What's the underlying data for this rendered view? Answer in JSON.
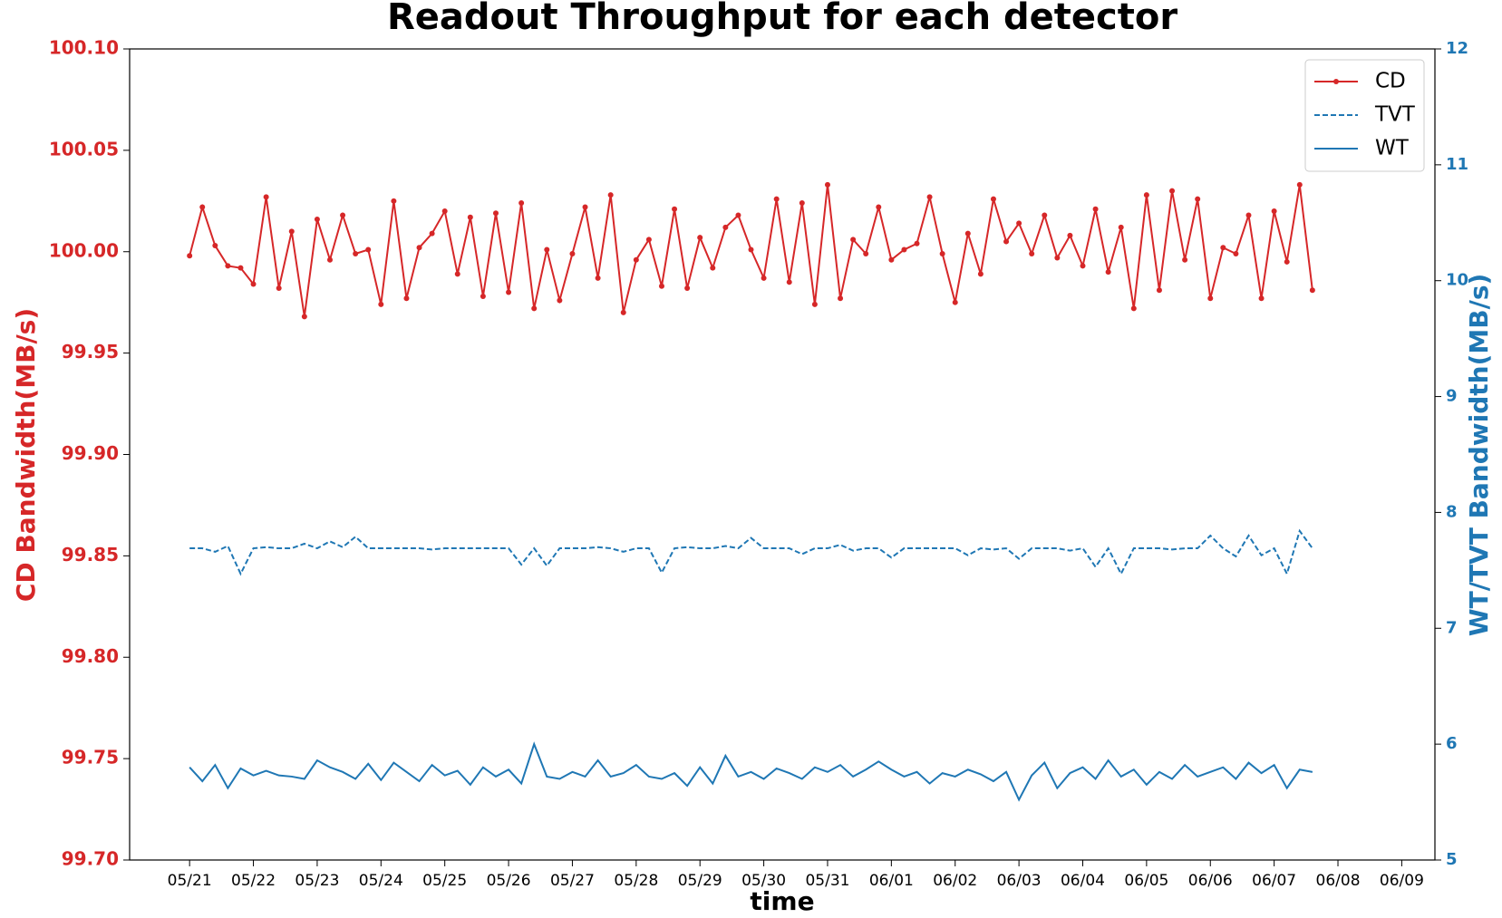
{
  "chart_data": {
    "type": "line",
    "title": "Readout Throughput for each detector",
    "xlabel": "time",
    "ylabel": "CD Bandwidth(MB/s)",
    "y2label": "WT/TVT Bandwidth(MB/s)",
    "ylabel_color": "#d62728",
    "y2label_color": "#1f77b4",
    "legend": "upper right",
    "xlim": [
      -0.94,
      19.52
    ],
    "xticks": [
      {
        "value": 0,
        "label": "05/21"
      },
      {
        "value": 1,
        "label": "05/22"
      },
      {
        "value": 2,
        "label": "05/23"
      },
      {
        "value": 3,
        "label": "05/24"
      },
      {
        "value": 4,
        "label": "05/25"
      },
      {
        "value": 5,
        "label": "05/26"
      },
      {
        "value": 6,
        "label": "05/27"
      },
      {
        "value": 7,
        "label": "05/28"
      },
      {
        "value": 8,
        "label": "05/29"
      },
      {
        "value": 9,
        "label": "05/30"
      },
      {
        "value": 10,
        "label": "05/31"
      },
      {
        "value": 11,
        "label": "06/01"
      },
      {
        "value": 12,
        "label": "06/02"
      },
      {
        "value": 13,
        "label": "06/03"
      },
      {
        "value": 14,
        "label": "06/04"
      },
      {
        "value": 15,
        "label": "06/05"
      },
      {
        "value": 16,
        "label": "06/06"
      },
      {
        "value": 17,
        "label": "06/07"
      },
      {
        "value": 18,
        "label": "06/08"
      },
      {
        "value": 19,
        "label": "06/09"
      }
    ],
    "ylim": [
      99.7,
      100.1
    ],
    "yticks": [
      {
        "value": 99.7,
        "label": "99.70"
      },
      99.75,
      {
        "value": 99.8,
        "label": "99.80"
      },
      99.85,
      {
        "value": 99.9,
        "label": "99.90"
      },
      99.95,
      {
        "value": 100,
        "label": "100.00"
      },
      100.05,
      {
        "value": 100.1,
        "label": "100.10"
      }
    ],
    "y2lim": [
      5,
      12
    ],
    "y2ticks": [
      5,
      6,
      7,
      8,
      9,
      10,
      11,
      12
    ],
    "x": [
      0,
      0.2,
      0.4,
      0.6,
      0.8,
      1,
      1.2,
      1.4,
      1.6,
      1.8,
      2,
      2.2,
      2.4,
      2.6,
      2.8,
      3,
      3.2,
      3.4,
      3.6,
      3.8,
      4,
      4.2,
      4.4,
      4.6,
      4.8,
      5,
      5.2,
      5.4,
      5.6,
      5.8,
      6,
      6.2,
      6.4,
      6.6,
      6.8,
      7,
      7.2,
      7.4,
      7.6,
      7.8,
      8,
      8.2,
      8.4,
      8.6,
      8.8,
      9,
      9.2,
      9.4,
      9.6,
      9.8,
      10,
      10.2,
      10.4,
      10.6,
      10.8,
      11,
      11.2,
      11.4,
      11.6,
      11.8,
      12,
      12.2,
      12.4,
      12.6,
      12.8,
      13,
      13.2,
      13.4,
      13.6,
      13.8,
      14,
      14.2,
      14.4,
      14.6,
      14.8,
      15,
      15.2,
      15.4,
      15.6,
      15.8,
      16,
      16.2,
      16.4,
      16.6,
      16.8,
      17,
      17.2,
      17.4,
      17.6
    ],
    "series": [
      {
        "name": "CD",
        "color": "#d62728",
        "style": "solid",
        "marker": true,
        "values": [
          99.998,
          100.022,
          100.003,
          99.993,
          99.992,
          99.984,
          100.027,
          99.982,
          100.01,
          99.968,
          100.016,
          99.996,
          100.018,
          99.999,
          100.001,
          99.974,
          100.025,
          99.977,
          100.002,
          100.009,
          100.02,
          99.989,
          100.017,
          99.978,
          100.019,
          99.98,
          100.024,
          99.972,
          100.001,
          99.976,
          99.999,
          100.022,
          99.987,
          100.028,
          99.97,
          99.996,
          100.006,
          99.983,
          100.021,
          99.982,
          100.007,
          99.992,
          100.012,
          100.018,
          100.001,
          99.987,
          100.026,
          99.985,
          100.024,
          99.974,
          100.033,
          99.977,
          100.006,
          99.999,
          100.022,
          99.996,
          100.001,
          100.004,
          100.027,
          99.999,
          99.975,
          100.009,
          99.989,
          100.026,
          100.005,
          100.014,
          99.999,
          100.018,
          99.997,
          100.008,
          99.993,
          100.021,
          99.99,
          100.012,
          99.972,
          100.028,
          99.981,
          100.03,
          99.996,
          100.026,
          99.977,
          100.002,
          99.999,
          100.018,
          99.977,
          100.02,
          99.995,
          100.033,
          99.981
        ]
      },
      {
        "name": "TVT",
        "color": "#1f77b4",
        "style": "dashed",
        "marker": false,
        "axis": "y2",
        "values": [
          7.69,
          7.69,
          7.66,
          7.71,
          7.47,
          7.69,
          7.7,
          7.69,
          7.69,
          7.73,
          7.69,
          7.75,
          7.7,
          7.79,
          7.69,
          7.69,
          7.69,
          7.69,
          7.69,
          7.68,
          7.69,
          7.69,
          7.69,
          7.69,
          7.69,
          7.69,
          7.55,
          7.69,
          7.54,
          7.69,
          7.69,
          7.69,
          7.7,
          7.69,
          7.66,
          7.69,
          7.69,
          7.48,
          7.69,
          7.7,
          7.69,
          7.69,
          7.71,
          7.69,
          7.78,
          7.69,
          7.69,
          7.69,
          7.64,
          7.69,
          7.69,
          7.72,
          7.67,
          7.69,
          7.69,
          7.61,
          7.69,
          7.69,
          7.69,
          7.69,
          7.69,
          7.63,
          7.69,
          7.68,
          7.69,
          7.6,
          7.69,
          7.69,
          7.69,
          7.67,
          7.69,
          7.53,
          7.69,
          7.47,
          7.69,
          7.69,
          7.69,
          7.68,
          7.69,
          7.69,
          7.8,
          7.69,
          7.62,
          7.8,
          7.63,
          7.69,
          7.47,
          7.84,
          7.69
        ]
      },
      {
        "name": "WT",
        "color": "#1f77b4",
        "style": "solid",
        "marker": false,
        "axis": "y2",
        "values": [
          5.8,
          5.68,
          5.82,
          5.62,
          5.79,
          5.73,
          5.77,
          5.73,
          5.72,
          5.7,
          5.86,
          5.8,
          5.76,
          5.7,
          5.83,
          5.69,
          5.84,
          5.76,
          5.68,
          5.82,
          5.73,
          5.77,
          5.65,
          5.8,
          5.72,
          5.78,
          5.66,
          6.0,
          5.72,
          5.7,
          5.76,
          5.72,
          5.86,
          5.72,
          5.75,
          5.82,
          5.72,
          5.7,
          5.75,
          5.64,
          5.8,
          5.66,
          5.9,
          5.72,
          5.76,
          5.7,
          5.79,
          5.75,
          5.7,
          5.8,
          5.76,
          5.82,
          5.72,
          5.78,
          5.85,
          5.78,
          5.72,
          5.76,
          5.66,
          5.75,
          5.72,
          5.78,
          5.74,
          5.68,
          5.76,
          5.52,
          5.73,
          5.84,
          5.62,
          5.75,
          5.8,
          5.7,
          5.86,
          5.72,
          5.78,
          5.65,
          5.76,
          5.7,
          5.82,
          5.72,
          5.76,
          5.8,
          5.7,
          5.84,
          5.75,
          5.82,
          5.62,
          5.78,
          5.76
        ]
      }
    ]
  }
}
